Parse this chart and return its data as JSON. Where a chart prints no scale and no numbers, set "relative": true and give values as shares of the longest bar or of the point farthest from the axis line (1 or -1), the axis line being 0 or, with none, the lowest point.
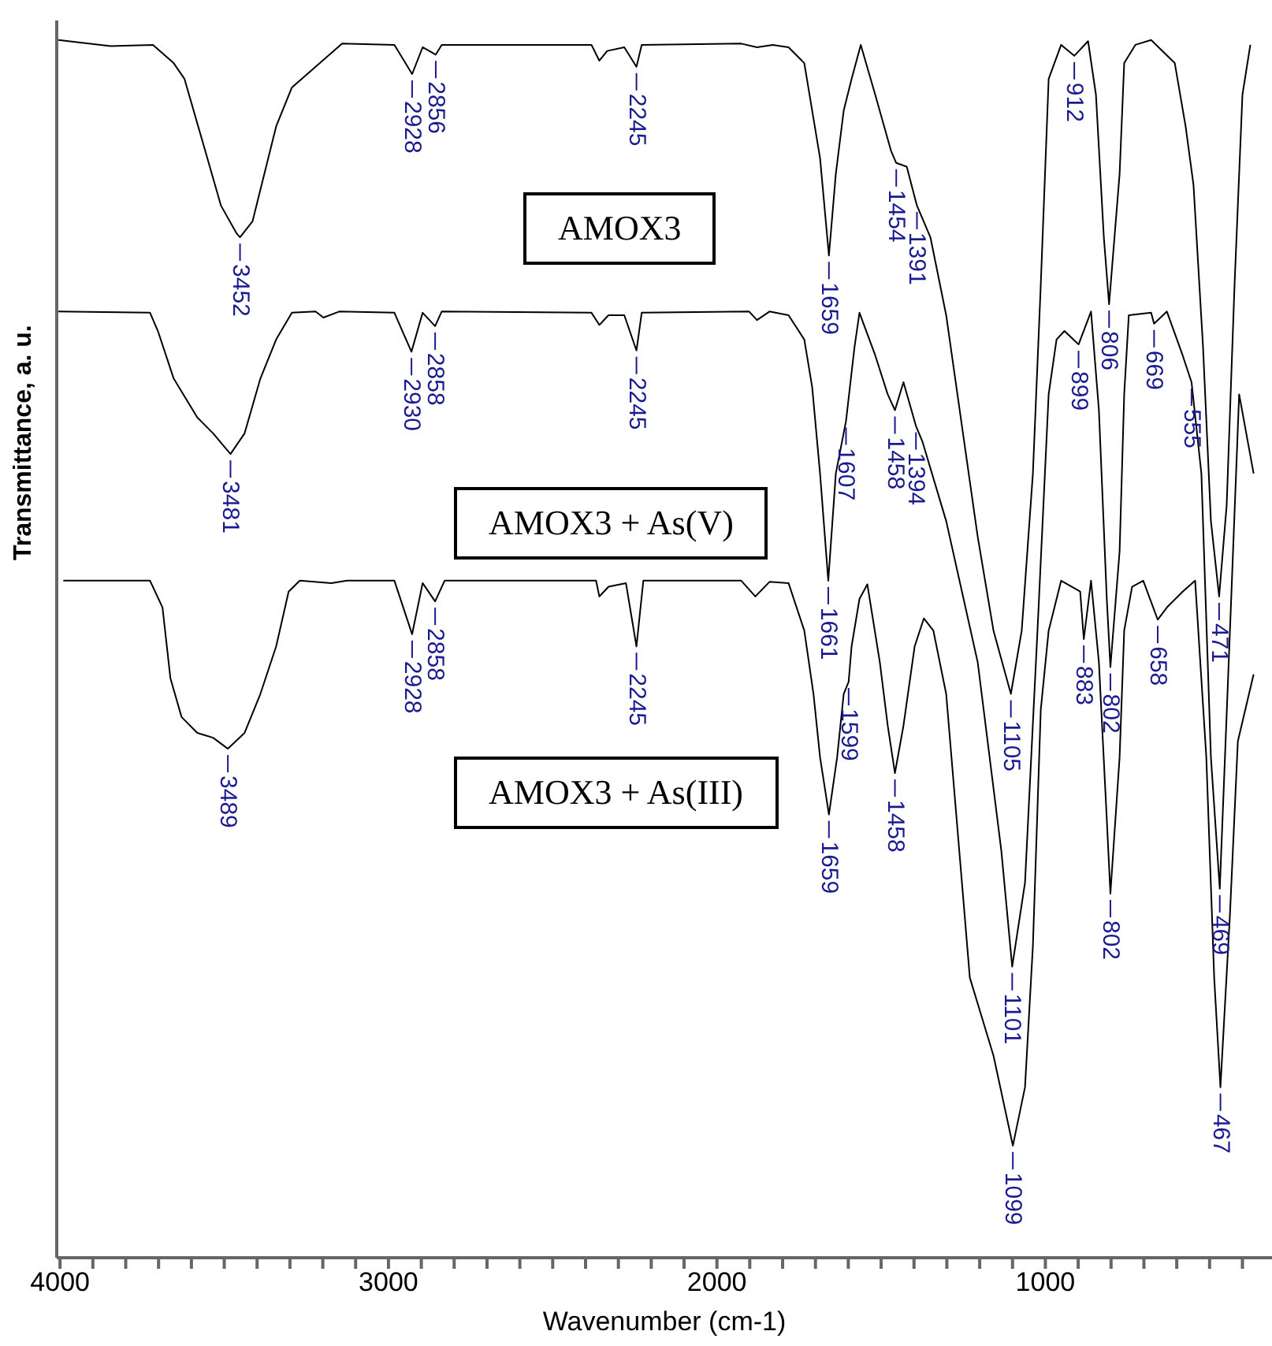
{
  "chart_data": {
    "type": "line",
    "relative": true,
    "xlabel": "Wavenumber (cm-1)",
    "ylabel": "Transmittance, a. u.",
    "xlim": [
      4010,
      310
    ],
    "xticks": [
      4000,
      {
        "value": 3900,
        "label": null
      },
      {
        "value": 3800,
        "label": null
      },
      {
        "value": 3700,
        "label": null
      },
      {
        "value": 3600,
        "label": null
      },
      {
        "value": 3500,
        "label": null
      },
      {
        "value": 3400,
        "label": null
      },
      {
        "value": 3300,
        "label": null
      },
      {
        "value": 3200,
        "label": null
      },
      {
        "value": 3100,
        "label": null
      },
      3000,
      {
        "value": 2900,
        "label": null
      },
      {
        "value": 2800,
        "label": null
      },
      {
        "value": 2700,
        "label": null
      },
      {
        "value": 2600,
        "label": null
      },
      {
        "value": 2500,
        "label": null
      },
      {
        "value": 2400,
        "label": null
      },
      {
        "value": 2300,
        "label": null
      },
      {
        "value": 2200,
        "label": null
      },
      {
        "value": 2100,
        "label": null
      },
      2000,
      {
        "value": 1900,
        "label": null
      },
      {
        "value": 1800,
        "label": null
      },
      {
        "value": 1700,
        "label": null
      },
      {
        "value": 1600,
        "label": null
      },
      {
        "value": 1500,
        "label": null
      },
      {
        "value": 1400,
        "label": null
      },
      {
        "value": 1300,
        "label": null
      },
      {
        "value": 1200,
        "label": null
      },
      {
        "value": 1100,
        "label": null
      },
      1000,
      {
        "value": 900,
        "label": null
      },
      {
        "value": 800,
        "label": null
      },
      {
        "value": 700,
        "label": null
      },
      {
        "value": 600,
        "label": null
      },
      {
        "value": 500,
        "label": null
      },
      {
        "value": 400,
        "label": null
      }
    ],
    "series": [
      {
        "name": "AMOX3",
        "color": "#000000",
        "x": [
          4005,
          3846,
          3717,
          3654,
          3621,
          3558,
          3510,
          3462,
          3452,
          3414,
          3342,
          3294,
          3222,
          3141,
          2982,
          2928,
          2896,
          2856,
          2838,
          2382,
          2358,
          2334,
          2282,
          2245,
          2229,
          1926,
          1878,
          1830,
          1782,
          1734,
          1710,
          1686,
          1659,
          1638,
          1614,
          1590,
          1562,
          1518,
          1470,
          1454,
          1422,
          1398,
          1391,
          1350,
          1302,
          1254,
          1206,
          1158,
          1105,
          1072,
          1038,
          1014,
          990,
          952,
          912,
          870,
          846,
          822,
          806,
          774,
          760,
          726,
          678,
          606,
          573,
          549,
          520,
          496,
          471,
          448,
          424,
          400,
          376
        ],
        "values": [
          1.0,
          0.995,
          0.996,
          0.981,
          0.968,
          0.909,
          0.864,
          0.841,
          0.838,
          0.851,
          0.929,
          0.961,
          0.978,
          0.997,
          0.996,
          0.972,
          0.994,
          0.988,
          0.996,
          0.996,
          0.983,
          0.991,
          0.994,
          0.978,
          0.996,
          0.997,
          0.994,
          0.996,
          0.994,
          0.981,
          0.942,
          0.903,
          0.823,
          0.89,
          0.942,
          0.968,
          0.996,
          0.955,
          0.909,
          0.899,
          0.896,
          0.871,
          0.864,
          0.838,
          0.774,
          0.683,
          0.592,
          0.515,
          0.463,
          0.515,
          0.644,
          0.799,
          0.968,
          0.996,
          0.987,
          0.999,
          0.955,
          0.838,
          0.783,
          0.89,
          0.981,
          0.996,
          1.0,
          0.981,
          0.929,
          0.881,
          0.748,
          0.605,
          0.543,
          0.618,
          0.799,
          0.955,
          0.996
        ]
      },
      {
        "name": "AMOX3 + As(V)",
        "color": "#000000",
        "x": [
          4005,
          3726,
          3702,
          3654,
          3582,
          3534,
          3481,
          3438,
          3390,
          3342,
          3294,
          3222,
          3198,
          3150,
          2982,
          2930,
          2896,
          2858,
          2838,
          2382,
          2358,
          2330,
          2282,
          2245,
          2229,
          1902,
          1878,
          1840,
          1782,
          1734,
          1710,
          1686,
          1661,
          1638,
          1607,
          1581,
          1566,
          1518,
          1480,
          1458,
          1432,
          1394,
          1374,
          1302,
          1206,
          1134,
          1101,
          1062,
          1024,
          990,
          966,
          942,
          899,
          861,
          837,
          813,
          802,
          774,
          760,
          746,
          678,
          669,
          630,
          582,
          555,
          525,
          496,
          469,
          438,
          410,
          366
        ],
        "values": [
          0.777,
          0.776,
          0.761,
          0.722,
          0.69,
          0.677,
          0.66,
          0.677,
          0.722,
          0.754,
          0.776,
          0.777,
          0.772,
          0.777,
          0.776,
          0.744,
          0.776,
          0.765,
          0.777,
          0.776,
          0.766,
          0.774,
          0.774,
          0.745,
          0.776,
          0.777,
          0.77,
          0.777,
          0.774,
          0.754,
          0.715,
          0.644,
          0.556,
          0.644,
          0.687,
          0.748,
          0.776,
          0.741,
          0.709,
          0.696,
          0.719,
          0.683,
          0.67,
          0.605,
          0.489,
          0.334,
          0.239,
          0.308,
          0.515,
          0.709,
          0.754,
          0.761,
          0.75,
          0.777,
          0.696,
          0.541,
          0.485,
          0.58,
          0.709,
          0.774,
          0.776,
          0.767,
          0.777,
          0.741,
          0.719,
          0.644,
          0.411,
          0.303,
          0.515,
          0.709,
          0.644
        ]
      },
      {
        "name": "AMOX3 + As(III)",
        "color": "#000000",
        "x": [
          3990,
          3726,
          3688,
          3664,
          3630,
          3582,
          3534,
          3489,
          3438,
          3390,
          3342,
          3304,
          3270,
          3174,
          3126,
          2982,
          2928,
          2896,
          2858,
          2829,
          2368,
          2358,
          2330,
          2277,
          2245,
          2224,
          1926,
          1883,
          1840,
          1782,
          1734,
          1706,
          1686,
          1659,
          1634,
          1614,
          1599,
          1590,
          1566,
          1542,
          1504,
          1480,
          1458,
          1432,
          1398,
          1370,
          1341,
          1302,
          1254,
          1230,
          1158,
          1099,
          1062,
          1038,
          1014,
          990,
          952,
          894,
          883,
          861,
          837,
          813,
          802,
          774,
          760,
          736,
          702,
          658,
          630,
          582,
          544,
          510,
          486,
          467,
          438,
          414,
          366
        ],
        "values": [
          0.556,
          0.556,
          0.534,
          0.476,
          0.444,
          0.431,
          0.427,
          0.418,
          0.431,
          0.463,
          0.502,
          0.547,
          0.556,
          0.554,
          0.556,
          0.556,
          0.512,
          0.554,
          0.539,
          0.556,
          0.556,
          0.543,
          0.551,
          0.554,
          0.502,
          0.556,
          0.556,
          0.543,
          0.555,
          0.554,
          0.515,
          0.463,
          0.411,
          0.364,
          0.411,
          0.463,
          0.473,
          0.502,
          0.541,
          0.553,
          0.489,
          0.437,
          0.398,
          0.437,
          0.502,
          0.525,
          0.515,
          0.463,
          0.308,
          0.23,
          0.166,
          0.092,
          0.14,
          0.256,
          0.45,
          0.515,
          0.556,
          0.547,
          0.508,
          0.556,
          0.489,
          0.36,
          0.299,
          0.411,
          0.515,
          0.551,
          0.556,
          0.524,
          0.534,
          0.547,
          0.556,
          0.411,
          0.23,
          0.14,
          0.282,
          0.424,
          0.479
        ]
      }
    ],
    "annotations": [
      {
        "text": "3452",
        "x": 3452,
        "y": 0.838
      },
      {
        "text": "2928",
        "x": 2928,
        "y": 0.972
      },
      {
        "text": "2856",
        "x": 2856,
        "y": 0.988
      },
      {
        "text": "2245",
        "x": 2245,
        "y": 0.978
      },
      {
        "text": "1659",
        "x": 1659,
        "y": 0.823
      },
      {
        "text": "1454",
        "x": 1454,
        "y": 0.899
      },
      {
        "text": "1391",
        "x": 1391,
        "y": 0.864
      },
      {
        "text": "1105",
        "x": 1105,
        "y": 0.463
      },
      {
        "text": "912",
        "x": 912,
        "y": 0.987
      },
      {
        "text": "806",
        "x": 806,
        "y": 0.783
      },
      {
        "text": "471",
        "x": 471,
        "y": 0.543
      },
      {
        "text": "3481",
        "x": 3481,
        "y": 0.66
      },
      {
        "text": "2930",
        "x": 2930,
        "y": 0.744
      },
      {
        "text": "2858",
        "x": 2858,
        "y": 0.765
      },
      {
        "text": "2245",
        "x": 2245,
        "y": 0.745
      },
      {
        "text": "1661",
        "x": 1661,
        "y": 0.556
      },
      {
        "text": "1607",
        "x": 1607,
        "y": 0.687
      },
      {
        "text": "1458",
        "x": 1458,
        "y": 0.696
      },
      {
        "text": "1394",
        "x": 1394,
        "y": 0.683
      },
      {
        "text": "1101",
        "x": 1101,
        "y": 0.239
      },
      {
        "text": "899",
        "x": 899,
        "y": 0.75
      },
      {
        "text": "802",
        "x": 802,
        "y": 0.485
      },
      {
        "text": "669",
        "x": 669,
        "y": 0.767
      },
      {
        "text": "555",
        "x": 555,
        "y": 0.719
      },
      {
        "text": "469",
        "x": 469,
        "y": 0.303
      },
      {
        "text": "3489",
        "x": 3489,
        "y": 0.418
      },
      {
        "text": "2928",
        "x": 2928,
        "y": 0.512
      },
      {
        "text": "2858",
        "x": 2858,
        "y": 0.539
      },
      {
        "text": "2245",
        "x": 2245,
        "y": 0.502
      },
      {
        "text": "1659",
        "x": 1659,
        "y": 0.364
      },
      {
        "text": "1599",
        "x": 1599,
        "y": 0.473
      },
      {
        "text": "1458",
        "x": 1458,
        "y": 0.398
      },
      {
        "text": "1099",
        "x": 1099,
        "y": 0.092
      },
      {
        "text": "883",
        "x": 883,
        "y": 0.508
      },
      {
        "text": "802",
        "x": 802,
        "y": 0.299
      },
      {
        "text": "658",
        "x": 658,
        "y": 0.524
      },
      {
        "text": "467",
        "x": 467,
        "y": 0.14
      }
    ]
  }
}
